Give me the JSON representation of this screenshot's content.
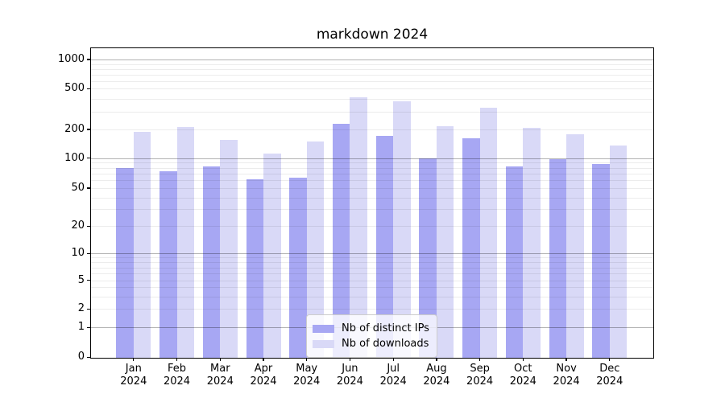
{
  "title": "markdown 2024",
  "chart_data": {
    "type": "bar",
    "title": "markdown 2024",
    "months": [
      "Jan",
      "Feb",
      "Mar",
      "Apr",
      "May",
      "Jun",
      "Jul",
      "Aug",
      "Sep",
      "Oct",
      "Nov",
      "Dec"
    ],
    "year": "2024",
    "categories": [
      "Jan 2024",
      "Feb 2024",
      "Mar 2024",
      "Apr 2024",
      "May 2024",
      "Jun 2024",
      "Jul 2024",
      "Aug 2024",
      "Sep 2024",
      "Oct 2024",
      "Nov 2024",
      "Dec 2024"
    ],
    "series": [
      {
        "name": "Nb of distinct IPs",
        "color": "#a7a7f3",
        "values": [
          80,
          75,
          84,
          62,
          65,
          228,
          172,
          101,
          165,
          84,
          98,
          88
        ]
      },
      {
        "name": "Nb of downloads",
        "color": "#d9d9f7",
        "values": [
          192,
          215,
          157,
          112,
          151,
          420,
          382,
          218,
          330,
          210,
          180,
          137
        ]
      }
    ],
    "xlabel": "",
    "ylabel": "",
    "yscale": "symlog-like",
    "ylim": [
      0,
      1000
    ],
    "ytick_values": [
      0,
      1,
      2,
      5,
      10,
      20,
      50,
      100,
      200,
      500,
      1000
    ],
    "ytick_labels": [
      "0",
      "1",
      "2",
      "5",
      "10",
      "20",
      "50",
      "100",
      "200",
      "500",
      "1000"
    ],
    "grid": "both-major-and-minor",
    "legend_position": "lower center"
  },
  "colors": {
    "distinct_ips_bar": "#a7a7f3",
    "downloads_bar": "#d9d9f7",
    "major_gridline": "#b3b3b3",
    "minor_gridline": "#ebebeb",
    "axis_spine": "#000000",
    "text": "#000000"
  }
}
